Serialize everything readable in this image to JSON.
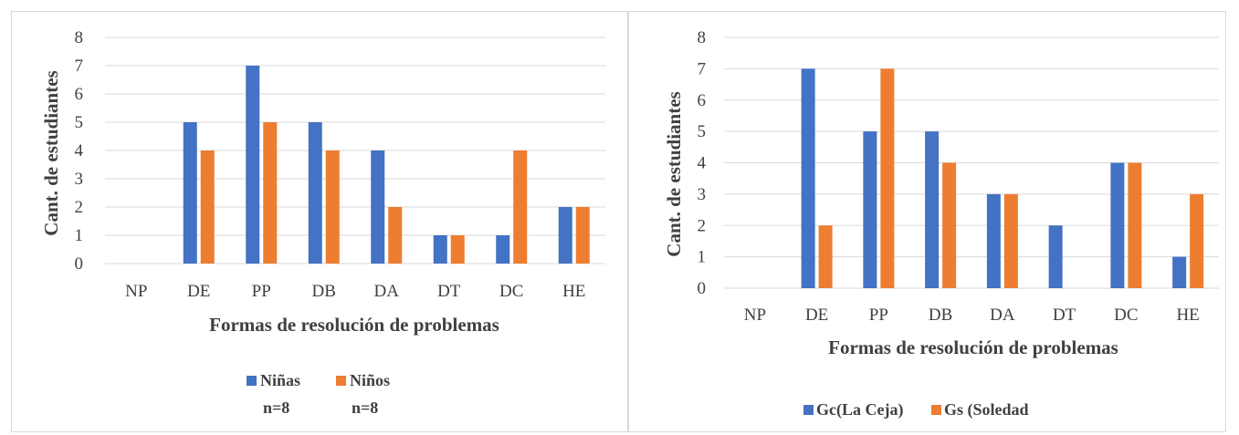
{
  "chart_data": [
    {
      "type": "bar",
      "categories": [
        "NP",
        "DE",
        "PP",
        "DB",
        "DA",
        "DT",
        "DC",
        "HE"
      ],
      "series": [
        {
          "name": "Niñas",
          "name_line2": "n=8",
          "color": "#4472C4",
          "values": [
            0,
            5,
            7,
            5,
            4,
            1,
            1,
            2
          ]
        },
        {
          "name": "Niños",
          "name_line2": "n=8",
          "color": "#ED7D31",
          "values": [
            0,
            4,
            5,
            4,
            2,
            1,
            4,
            2
          ]
        }
      ],
      "xlabel": "Formas de resolución de problemas",
      "ylabel": "Cant. de estudiantes",
      "ylim": [
        0,
        8
      ],
      "yticks": [
        0,
        1,
        2,
        3,
        4,
        5,
        6,
        7,
        8
      ],
      "grid": true,
      "legend": "bottom"
    },
    {
      "type": "bar",
      "categories": [
        "NP",
        "DE",
        "PP",
        "DB",
        "DA",
        "DT",
        "DC",
        "HE"
      ],
      "series": [
        {
          "name": "Gc(La Ceja)",
          "color": "#4472C4",
          "values": [
            0,
            7,
            5,
            5,
            3,
            2,
            4,
            1
          ]
        },
        {
          "name": "Gs (Soledad",
          "color": "#ED7D31",
          "values": [
            0,
            2,
            7,
            4,
            3,
            0,
            4,
            3
          ]
        }
      ],
      "xlabel": "Formas de resolución de problemas",
      "ylabel": "Cant. de estudiantes",
      "ylim": [
        0,
        8
      ],
      "yticks": [
        0,
        1,
        2,
        3,
        4,
        5,
        6,
        7,
        8
      ],
      "grid": true,
      "legend": "bottom"
    }
  ]
}
